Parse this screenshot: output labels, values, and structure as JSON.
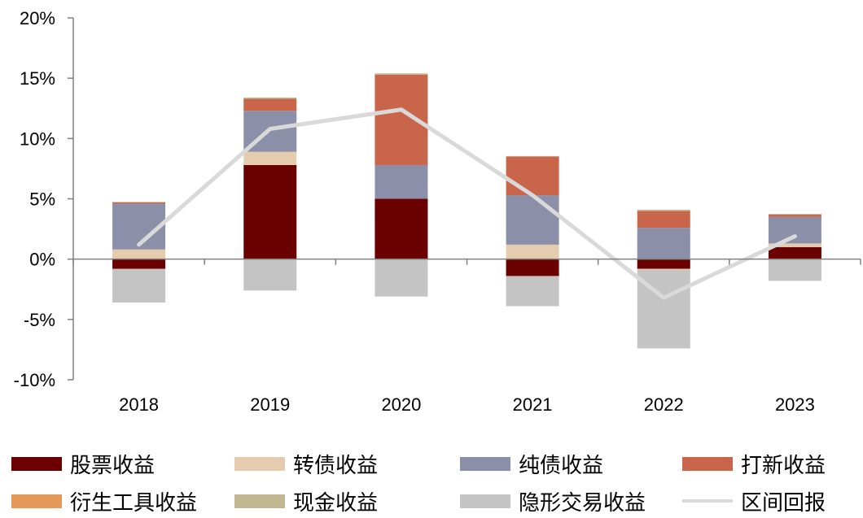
{
  "chart_data": {
    "type": "bar",
    "stacked": true,
    "categories": [
      "2018",
      "2019",
      "2020",
      "2021",
      "2022",
      "2023"
    ],
    "ylim": [
      -10,
      20
    ],
    "yticks": [
      20,
      15,
      10,
      5,
      0,
      -5,
      -10
    ],
    "ytick_labels": [
      "20%",
      "15%",
      "10%",
      "5%",
      "0%",
      "-5%",
      "-10%"
    ],
    "grid": false,
    "legend_position": "bottom",
    "series": [
      {
        "name": "股票收益",
        "color": "#6b0000",
        "values": [
          -0.8,
          7.8,
          5.0,
          -1.4,
          -0.8,
          1.0
        ]
      },
      {
        "name": "转债收益",
        "color": "#e6ccaf",
        "values": [
          0.8,
          1.1,
          0.0,
          1.2,
          -0.1,
          0.3
        ]
      },
      {
        "name": "纯债收益",
        "color": "#8c8fa8",
        "values": [
          3.8,
          3.4,
          2.8,
          4.1,
          2.6,
          2.2
        ]
      },
      {
        "name": "打新收益",
        "color": "#c9654a",
        "values": [
          0.1,
          1.0,
          7.5,
          3.2,
          1.4,
          0.2
        ]
      },
      {
        "name": "衍生工具收益",
        "color": "#e59a5a",
        "values": [
          0.0,
          0.0,
          0.0,
          0.0,
          0.0,
          0.0
        ]
      },
      {
        "name": "现金收益",
        "color": "#c2b994",
        "values": [
          0.05,
          0.1,
          0.1,
          0.05,
          0.1,
          0.05
        ]
      },
      {
        "name": "隐形交易收益",
        "color": "#c4c4c4",
        "values": [
          -2.8,
          -2.6,
          -3.1,
          -2.5,
          -6.5,
          -1.8
        ]
      },
      {
        "name": "区间回报",
        "color": "#d9d9d9",
        "type": "line",
        "values": [
          1.2,
          10.8,
          12.4,
          5.3,
          -3.2,
          1.9
        ]
      }
    ]
  }
}
